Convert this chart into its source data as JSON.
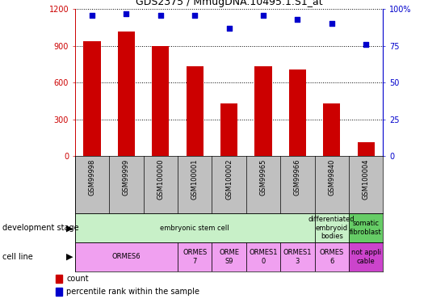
{
  "title": "GDS2375 / MmugDNA.10495.1.S1_at",
  "samples": [
    "GSM99998",
    "GSM99999",
    "GSM100000",
    "GSM100001",
    "GSM100002",
    "GSM99965",
    "GSM99966",
    "GSM99840",
    "GSM100004"
  ],
  "counts": [
    940,
    1020,
    900,
    730,
    430,
    730,
    710,
    430,
    110
  ],
  "percentiles": [
    96,
    97,
    96,
    96,
    87,
    96,
    93,
    90,
    76
  ],
  "ylim_left": [
    0,
    1200
  ],
  "ylim_right": [
    0,
    100
  ],
  "yticks_left": [
    0,
    300,
    600,
    900,
    1200
  ],
  "yticks_right": [
    0,
    25,
    50,
    75,
    100
  ],
  "bar_color": "#cc0000",
  "dot_color": "#0000cc",
  "dev_stage_groups": [
    {
      "label": "embryonic stem cell",
      "start": 0,
      "end": 7,
      "color": "#c8f0c8"
    },
    {
      "label": "differentiated\nembryoid\nbodies",
      "start": 7,
      "end": 8,
      "color": "#c8f0c8"
    },
    {
      "label": "somatic\nfibroblast",
      "start": 8,
      "end": 9,
      "color": "#66cc66"
    }
  ],
  "cell_line_groups": [
    {
      "label": "ORMES6",
      "start": 0,
      "end": 3,
      "color": "#f0a0f0"
    },
    {
      "label": "ORMES\n7",
      "start": 3,
      "end": 4,
      "color": "#f0a0f0"
    },
    {
      "label": "ORME\nS9",
      "start": 4,
      "end": 5,
      "color": "#f0a0f0"
    },
    {
      "label": "ORMES1\n0",
      "start": 5,
      "end": 6,
      "color": "#f0a0f0"
    },
    {
      "label": "ORMES1\n3",
      "start": 6,
      "end": 7,
      "color": "#f0a0f0"
    },
    {
      "label": "ORMES\n6",
      "start": 7,
      "end": 8,
      "color": "#f0a0f0"
    },
    {
      "label": "not appli\ncable",
      "start": 8,
      "end": 9,
      "color": "#cc44cc"
    }
  ],
  "sample_box_color": "#c0c0c0",
  "background_color": "#ffffff",
  "tick_fontsize": 7,
  "title_fontsize": 9,
  "label_fontsize": 7,
  "sample_fontsize": 6,
  "row_fontsize": 6,
  "legend_fontsize": 7
}
